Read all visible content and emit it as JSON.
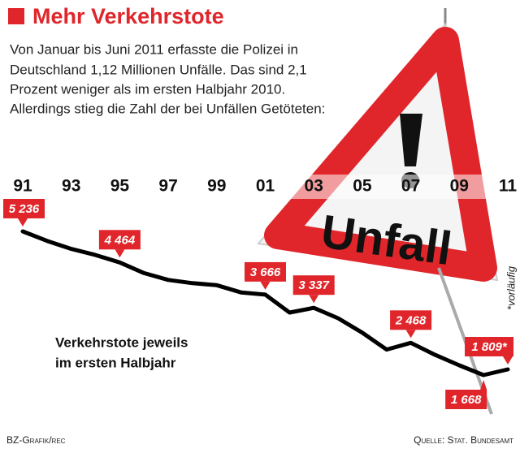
{
  "title": "Mehr Verkehrstote",
  "subtitle_lines": [
    "Von Januar bis Juni 2011 erfasste die Polizei in",
    "Deutschland 1,12 Millionen Unfälle. Das sind 2,1",
    "Prozent weniger als im ersten Halbjahr 2010.",
    "Allerdings stieg die Zahl der bei Unfällen Getöteten:"
  ],
  "illustration_label": "Unfall",
  "chart_data": {
    "type": "line",
    "categories": [
      "91",
      null,
      "93",
      null,
      "95",
      null,
      "97",
      null,
      "99",
      null,
      "01",
      null,
      "03",
      null,
      "05",
      null,
      "07",
      null,
      "09",
      null,
      "11"
    ],
    "values": [
      5236,
      5000,
      4800,
      4650,
      4464,
      4200,
      4030,
      3950,
      3900,
      3720,
      3666,
      3220,
      3337,
      3080,
      2720,
      2300,
      2468,
      2170,
      1910,
      1668,
      1809
    ],
    "value_labels": [
      [
        0,
        "5 236"
      ],
      [
        4,
        "4 464"
      ],
      [
        10,
        "3 666"
      ],
      [
        12,
        "3 337"
      ],
      [
        16,
        "2 468"
      ],
      [
        20,
        "1 809*"
      ],
      [
        19,
        "1 668"
      ]
    ],
    "color": "#000000",
    "label_color": "#e0262b",
    "annotation_lines": [
      "Verkehrstote jeweils",
      "im ersten Halbjahr"
    ],
    "footnote": "*vorläufig",
    "source": "Quelle: Stat. Bundesamt",
    "credit": "BZ-Grafik/rec"
  }
}
